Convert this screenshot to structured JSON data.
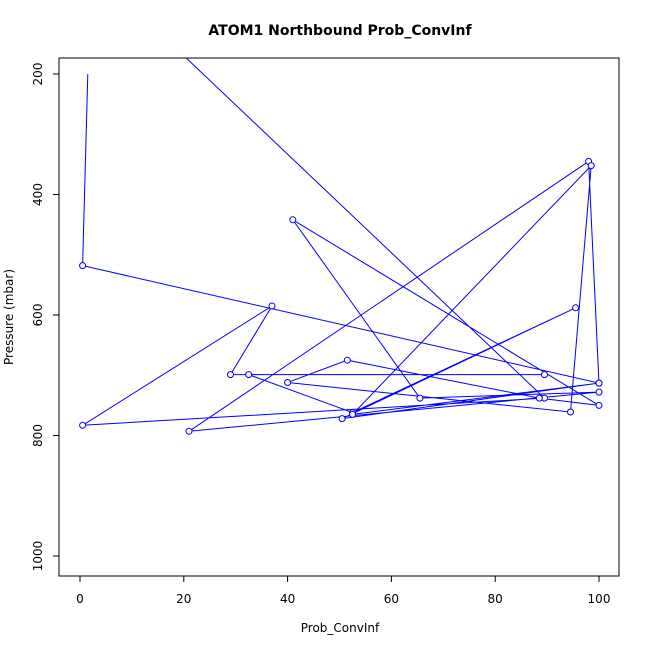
{
  "chart_data": {
    "type": "line",
    "title": "ATOM1 Northbound Prob_ConvInf",
    "xlabel": "Prob_ConvInf",
    "ylabel": "Pressure (mbar)",
    "xlim": [
      0,
      100
    ],
    "ylim": [
      1000,
      200
    ],
    "y_reversed": true,
    "grid": false,
    "xticks": [
      0,
      20,
      40,
      60,
      80,
      100
    ],
    "yticks": [
      200,
      400,
      600,
      800,
      1000
    ],
    "series": [
      {
        "color": "#0000ff",
        "x": [
          17,
          89.5,
          0.5,
          37,
          29,
          89.5,
          32.5,
          52.5,
          95.5,
          50.5,
          100,
          98,
          21,
          100,
          65.5,
          41,
          100,
          88.5,
          51.5,
          40,
          94.5,
          98.5,
          52.5,
          100,
          0.5,
          1.5
        ],
        "y": [
          145,
          738,
          783,
          585,
          699,
          699,
          699,
          762,
          588,
          772,
          713,
          345,
          793,
          728,
          738,
          442,
          750,
          738,
          675,
          712,
          761,
          352,
          765,
          713,
          518,
          200
        ],
        "markers_x": [
          89.5,
          0.5,
          37,
          29,
          89.5,
          32.5,
          52.5,
          95.5,
          50.5,
          100,
          98,
          21,
          100,
          65.5,
          41,
          100,
          88.5,
          51.5,
          40,
          94.5,
          98.5,
          52.5,
          100,
          0.5
        ],
        "markers_y": [
          738,
          783,
          585,
          699,
          699,
          699,
          762,
          588,
          772,
          713,
          345,
          793,
          728,
          738,
          442,
          750,
          738,
          675,
          712,
          761,
          352,
          765,
          713,
          518
        ]
      }
    ]
  }
}
